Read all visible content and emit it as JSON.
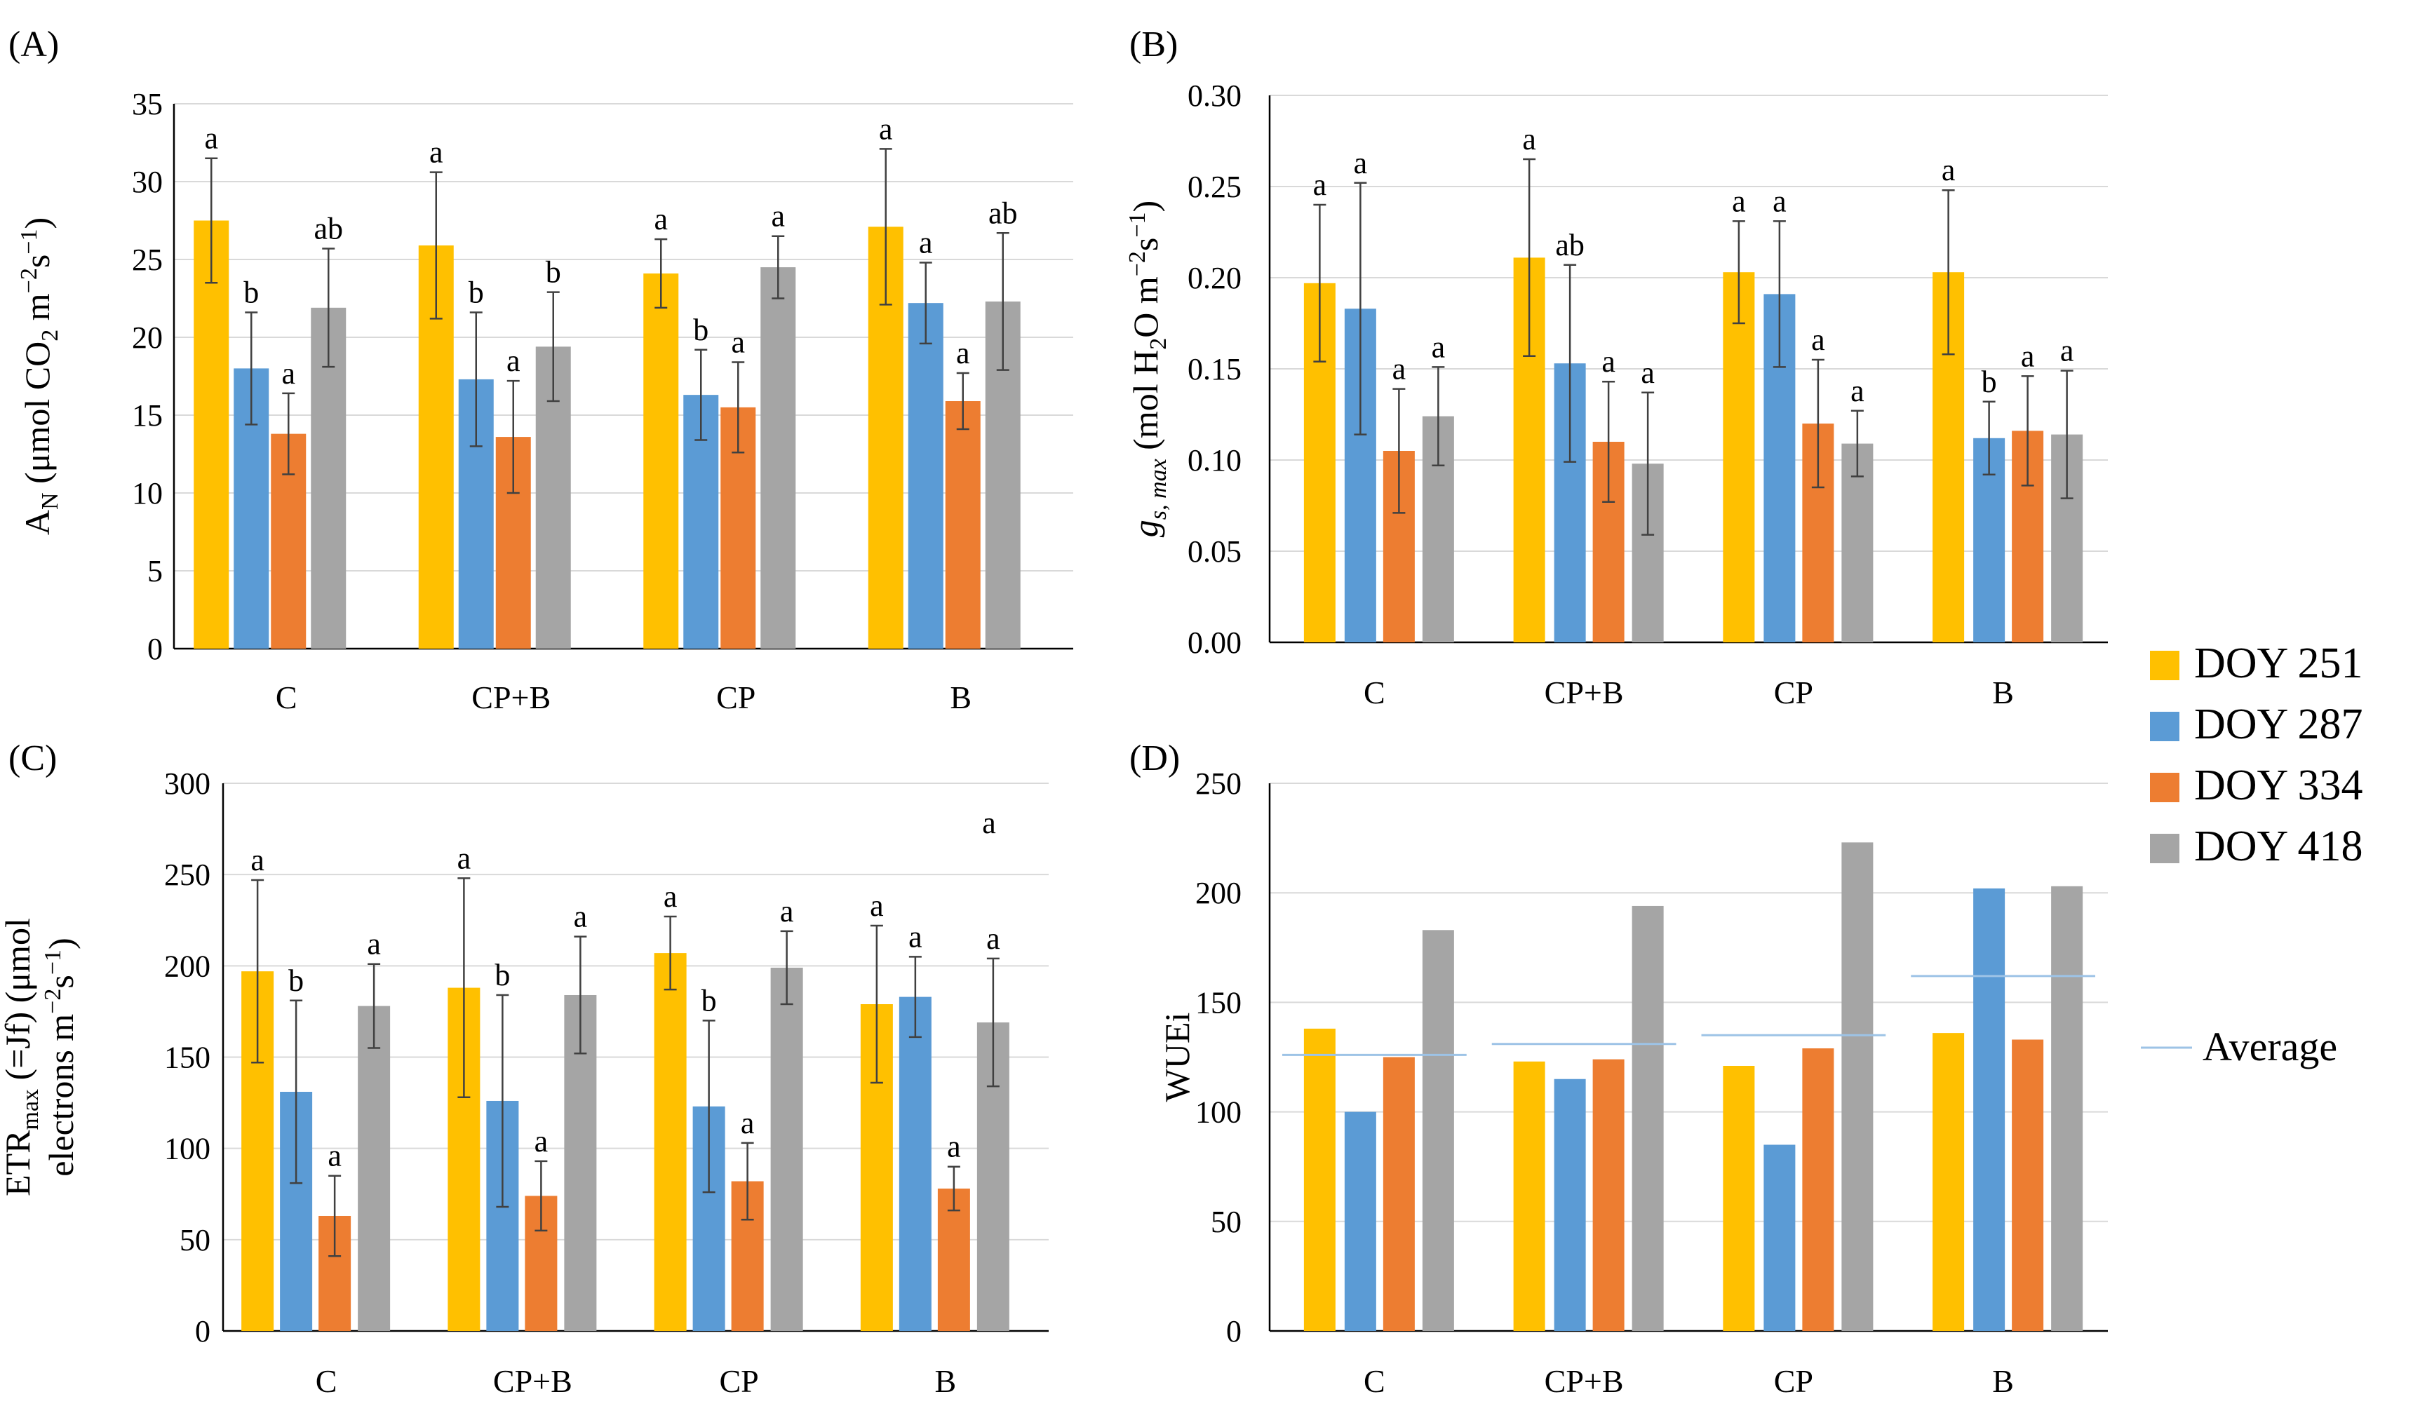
{
  "legend": {
    "series": [
      {
        "label": "DOY 251",
        "color": "#FFC000"
      },
      {
        "label": "DOY 287",
        "color": "#5B9BD5"
      },
      {
        "label": "DOY 334",
        "color": "#ED7D31"
      },
      {
        "label": "DOY 418",
        "color": "#A5A5A5"
      }
    ],
    "average_label": "Average",
    "average_color": "#9DC3E6"
  },
  "chart_data": [
    {
      "type": "bar",
      "panel_label": "(A)",
      "ylabel": "A_N (µmol CO_2 m^−2 s^−1)",
      "ylabel_parts": {
        "a": "A",
        "a_sub": "N",
        "b": " (μmol CO",
        "b_sub": "2",
        "c": " m",
        "c_sup": "−2",
        "d": "s",
        "d_sup": "−1",
        "e": ")"
      },
      "categories": [
        "C",
        "CP+B",
        "CP",
        "B"
      ],
      "ylim": [
        0,
        35
      ],
      "yticks": [
        "0",
        "5",
        "10",
        "15",
        "20",
        "25",
        "30",
        "35"
      ],
      "series": [
        {
          "name": "DOY 251",
          "values": [
            27.5,
            25.9,
            24.1,
            27.1
          ],
          "errors": [
            4.0,
            4.7,
            2.2,
            5.0
          ],
          "letters": [
            "a",
            "a",
            "a",
            "a"
          ]
        },
        {
          "name": "DOY 287",
          "values": [
            18.0,
            17.3,
            16.3,
            22.2
          ],
          "errors": [
            3.6,
            4.3,
            2.9,
            2.6
          ],
          "letters": [
            "b",
            "b",
            "b",
            "a"
          ]
        },
        {
          "name": "DOY 334",
          "values": [
            13.8,
            13.6,
            15.5,
            15.9
          ],
          "errors": [
            2.6,
            3.6,
            2.9,
            1.8
          ],
          "letters": [
            "a",
            "a",
            "a",
            "a"
          ]
        },
        {
          "name": "DOY 418",
          "values": [
            21.9,
            19.4,
            24.5,
            22.3
          ],
          "errors": [
            3.8,
            3.5,
            2.0,
            4.4
          ],
          "letters": [
            "ab",
            "b",
            "a",
            "ab"
          ]
        }
      ]
    },
    {
      "type": "bar",
      "panel_label": "(B)",
      "ylabel": "g_s, max (mol H_2O m^−2 s^−1)",
      "ylabel_parts": {
        "a": "g",
        "a_sub": "s, max",
        "b": " (mol H",
        "b_sub": "2",
        "c": "O m",
        "c_sup": "−2",
        "d": "s",
        "d_sup": "−1",
        "e": ")"
      },
      "categories": [
        "C",
        "CP+B",
        "CP",
        "B"
      ],
      "ylim": [
        0,
        0.3
      ],
      "yticks": [
        "0.00",
        "0.05",
        "0.10",
        "0.15",
        "0.20",
        "0.25",
        "0.30"
      ],
      "series": [
        {
          "name": "DOY 251",
          "values": [
            0.197,
            0.211,
            0.203,
            0.203
          ],
          "errors": [
            0.043,
            0.054,
            0.028,
            0.045
          ],
          "letters": [
            "a",
            "a",
            "a",
            "a"
          ]
        },
        {
          "name": "DOY 287",
          "values": [
            0.183,
            0.153,
            0.191,
            0.112
          ],
          "errors": [
            0.069,
            0.054,
            0.04,
            0.02
          ],
          "letters": [
            "a",
            "ab",
            "a",
            "b"
          ]
        },
        {
          "name": "DOY 334",
          "values": [
            0.105,
            0.11,
            0.12,
            0.116
          ],
          "errors": [
            0.034,
            0.033,
            0.035,
            0.03
          ],
          "letters": [
            "a",
            "a",
            "a",
            "a"
          ]
        },
        {
          "name": "DOY 418",
          "values": [
            0.124,
            0.098,
            0.109,
            0.114
          ],
          "errors": [
            0.027,
            0.039,
            0.018,
            0.035
          ],
          "letters": [
            "a",
            "a",
            "a",
            "a"
          ]
        }
      ]
    },
    {
      "type": "bar",
      "panel_label": "(C)",
      "ylabel": "ETR_max (=Jf) (µmol electrons m^−2 s^−1)",
      "ylabel_parts": {
        "a": "ETR",
        "a_sub": "max",
        "b": " (=Jf) (μmol",
        "line2": "electrons m",
        "c_sup": "−2",
        "d": "s",
        "d_sup": "−1",
        "e": ")"
      },
      "categories": [
        "C",
        "CP+B",
        "CP",
        "B"
      ],
      "ylim": [
        0,
        300
      ],
      "yticks": [
        "0",
        "50",
        "100",
        "150",
        "200",
        "250",
        "300"
      ],
      "extra_letter": "a",
      "series": [
        {
          "name": "DOY 251",
          "values": [
            197,
            188,
            207,
            179
          ],
          "errors": [
            50,
            60,
            20,
            43
          ],
          "letters": [
            "a",
            "a",
            "a",
            "a"
          ]
        },
        {
          "name": "DOY 287",
          "values": [
            131,
            126,
            123,
            183
          ],
          "errors": [
            50,
            58,
            47,
            22
          ],
          "letters": [
            "b",
            "b",
            "b",
            "a"
          ]
        },
        {
          "name": "DOY 334",
          "values": [
            63,
            74,
            82,
            78
          ],
          "errors": [
            22,
            19,
            21,
            12
          ],
          "letters": [
            "a",
            "a",
            "a",
            "a"
          ]
        },
        {
          "name": "DOY 418",
          "values": [
            178,
            184,
            199,
            169
          ],
          "errors": [
            23,
            32,
            20,
            35
          ],
          "letters": [
            "a",
            "a",
            "a",
            "a"
          ]
        }
      ]
    },
    {
      "type": "bar",
      "panel_label": "(D)",
      "ylabel": "WUEi",
      "categories": [
        "C",
        "CP+B",
        "CP",
        "B"
      ],
      "ylim": [
        0,
        250
      ],
      "yticks": [
        "0",
        "50",
        "100",
        "150",
        "200",
        "250"
      ],
      "series": [
        {
          "name": "DOY 251",
          "values": [
            138,
            123,
            121,
            136
          ]
        },
        {
          "name": "DOY 287",
          "values": [
            100,
            115,
            85,
            202
          ]
        },
        {
          "name": "DOY 334",
          "values": [
            125,
            124,
            129,
            133
          ]
        },
        {
          "name": "DOY 418",
          "values": [
            183,
            194,
            223,
            203
          ]
        }
      ],
      "average": [
        126,
        131,
        135,
        162
      ]
    }
  ]
}
